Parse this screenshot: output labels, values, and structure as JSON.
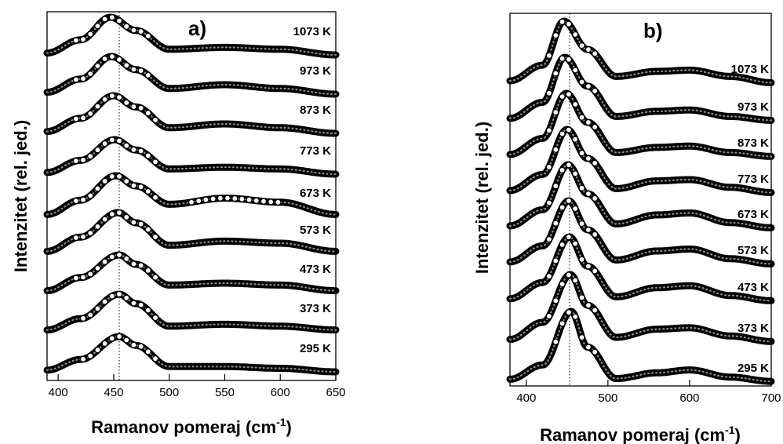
{
  "chart_data": [
    {
      "type": "line",
      "panel_label": "a)",
      "xlabel": "Ramanov pomeraj (cm",
      "xlabel_sup": "-1",
      "ylabel": "Intenzitet (rel. jed.)",
      "xlim": [
        390,
        650
      ],
      "xticks": [
        "400",
        "450",
        "500",
        "550",
        "600",
        "650"
      ],
      "reference_line_x": 455,
      "series": [
        {
          "name": "1073 K",
          "x": [
            390,
            420,
            447,
            470,
            500,
            550,
            600,
            650
          ],
          "y": [
            0.05,
            0.4,
            1.0,
            0.65,
            0.15,
            0.2,
            0.15,
            0.0
          ]
        },
        {
          "name": "973 K",
          "x": [
            390,
            420,
            448,
            470,
            500,
            550,
            600,
            650
          ],
          "y": [
            0.05,
            0.4,
            1.0,
            0.65,
            0.15,
            0.25,
            0.15,
            0.0
          ]
        },
        {
          "name": "873 K",
          "x": [
            390,
            420,
            450,
            470,
            500,
            550,
            600,
            650
          ],
          "y": [
            0.05,
            0.4,
            1.0,
            0.7,
            0.15,
            0.25,
            0.15,
            0.0
          ]
        },
        {
          "name": "773 K",
          "x": [
            390,
            420,
            451,
            470,
            500,
            550,
            600,
            650
          ],
          "y": [
            0.05,
            0.4,
            1.0,
            0.7,
            0.15,
            0.2,
            0.15,
            0.0
          ]
        },
        {
          "name": "673 K",
          "x": [
            390,
            420,
            452,
            470,
            500,
            550,
            600,
            650
          ],
          "y": [
            0.05,
            0.4,
            1.0,
            0.75,
            0.3,
            0.45,
            0.35,
            0.05
          ]
        },
        {
          "name": "573 K",
          "x": [
            390,
            420,
            454,
            470,
            500,
            550,
            600,
            650
          ],
          "y": [
            0.05,
            0.4,
            1.0,
            0.75,
            0.2,
            0.3,
            0.25,
            0.05
          ]
        },
        {
          "name": "473 K",
          "x": [
            390,
            420,
            455,
            470,
            500,
            550,
            600,
            650
          ],
          "y": [
            0.05,
            0.4,
            1.0,
            0.75,
            0.2,
            0.25,
            0.2,
            0.05
          ]
        },
        {
          "name": "373 K",
          "x": [
            390,
            420,
            455,
            470,
            500,
            550,
            600,
            650
          ],
          "y": [
            0.05,
            0.35,
            1.0,
            0.75,
            0.15,
            0.2,
            0.15,
            0.05
          ]
        },
        {
          "name": "295 K",
          "x": [
            390,
            420,
            455,
            470,
            500,
            550,
            600,
            650
          ],
          "y": [
            0.05,
            0.35,
            1.0,
            0.75,
            0.15,
            0.15,
            0.1,
            0.0
          ]
        }
      ]
    },
    {
      "type": "line",
      "panel_label": "b)",
      "xlabel": "Ramanov pomeraj (cm",
      "xlabel_sup": "-1",
      "ylabel": "Intenzitet (rel. jed.)",
      "xlim": [
        380,
        700
      ],
      "xticks": [
        "400",
        "500",
        "600",
        "700"
      ],
      "reference_line_x": 453,
      "series": [
        {
          "name": "1073 K",
          "x": [
            380,
            420,
            446,
            475,
            510,
            560,
            600,
            650,
            700
          ],
          "y": [
            0.05,
            0.3,
            1.0,
            0.55,
            0.12,
            0.2,
            0.22,
            0.12,
            0.02
          ]
        },
        {
          "name": "973 K",
          "x": [
            380,
            420,
            447,
            475,
            510,
            560,
            600,
            650,
            700
          ],
          "y": [
            0.05,
            0.3,
            1.0,
            0.55,
            0.08,
            0.16,
            0.18,
            0.08,
            0.02
          ]
        },
        {
          "name": "873 K",
          "x": [
            380,
            420,
            449,
            475,
            510,
            560,
            600,
            650,
            700
          ],
          "y": [
            0.05,
            0.3,
            1.0,
            0.55,
            0.08,
            0.16,
            0.18,
            0.08,
            0.02
          ]
        },
        {
          "name": "773 K",
          "x": [
            380,
            420,
            450,
            475,
            510,
            560,
            600,
            650,
            700
          ],
          "y": [
            0.05,
            0.3,
            1.0,
            0.55,
            0.08,
            0.2,
            0.22,
            0.1,
            0.02
          ]
        },
        {
          "name": "673 K",
          "x": [
            380,
            420,
            451,
            475,
            510,
            560,
            600,
            650,
            700
          ],
          "y": [
            0.05,
            0.3,
            1.0,
            0.55,
            0.08,
            0.22,
            0.25,
            0.1,
            0.02
          ]
        },
        {
          "name": "573 K",
          "x": [
            380,
            420,
            452,
            475,
            510,
            560,
            600,
            650,
            700
          ],
          "y": [
            0.05,
            0.3,
            1.0,
            0.55,
            0.08,
            0.22,
            0.25,
            0.1,
            0.02
          ]
        },
        {
          "name": "473 K",
          "x": [
            380,
            420,
            453,
            475,
            510,
            560,
            600,
            650,
            700
          ],
          "y": [
            0.05,
            0.3,
            1.0,
            0.55,
            0.08,
            0.22,
            0.25,
            0.1,
            0.02
          ]
        },
        {
          "name": "373 K",
          "x": [
            380,
            420,
            454,
            475,
            510,
            560,
            600,
            650,
            700
          ],
          "y": [
            0.05,
            0.3,
            1.0,
            0.55,
            0.08,
            0.2,
            0.22,
            0.1,
            0.02
          ]
        },
        {
          "name": "295 K",
          "x": [
            380,
            420,
            455,
            475,
            510,
            560,
            600,
            650,
            700
          ],
          "y": [
            0.05,
            0.25,
            1.0,
            0.5,
            0.06,
            0.14,
            0.18,
            0.08,
            0.02
          ]
        }
      ]
    }
  ]
}
